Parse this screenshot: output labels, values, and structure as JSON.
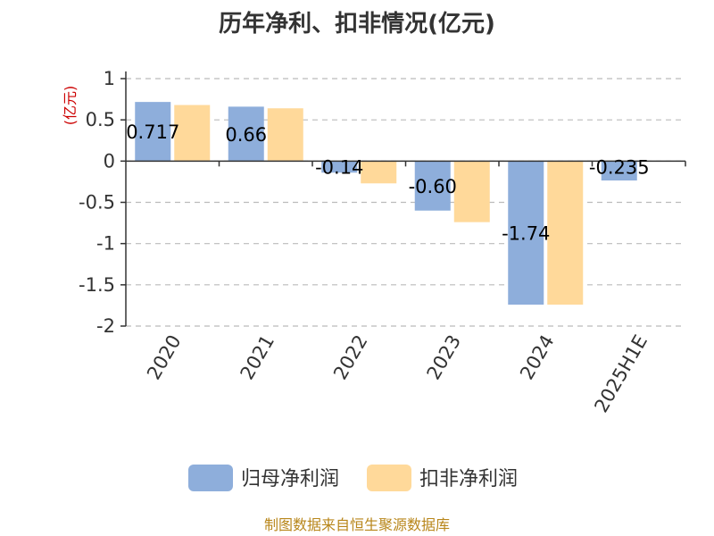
{
  "title": "历年净利、扣非情况(亿元)",
  "unit_label": "(亿元)",
  "source": "制图数据来自恒生聚源数据库",
  "colors": {
    "series1": "#8eaedb",
    "series2": "#ffd99a",
    "grid": "#bbbbbb",
    "axis": "#333333"
  },
  "chart_data": {
    "type": "bar",
    "categories": [
      "2020",
      "2021",
      "2022",
      "2023",
      "2024",
      "2025H1E"
    ],
    "series": [
      {
        "name": "归母净利润",
        "values": [
          0.717,
          0.66,
          -0.14,
          -0.6,
          -1.74,
          -0.235
        ],
        "labels": [
          "0.717",
          "0.66",
          "-0.14",
          "-0.60",
          "-1.74",
          "-0.235"
        ]
      },
      {
        "name": "扣非净利润",
        "values": [
          0.68,
          0.64,
          -0.27,
          -0.74,
          -1.74,
          null
        ]
      }
    ],
    "yticks": [
      "1",
      "0.5",
      "0",
      "-0.5",
      "-1",
      "-1.5",
      "-2"
    ],
    "ylim": [
      -2,
      1
    ],
    "grid": true,
    "legend_position": "bottom"
  }
}
